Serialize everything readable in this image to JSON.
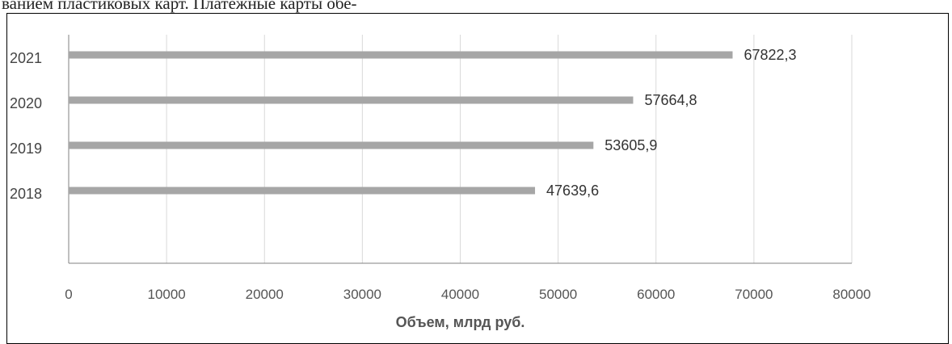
{
  "page": {
    "top_text": "ванием пластиковых карт. Платежные карты обе-"
  },
  "chart_data": {
    "type": "bar",
    "orientation": "horizontal",
    "categories": [
      "2021",
      "2020",
      "2019",
      "2018"
    ],
    "values": [
      67822.3,
      57664.8,
      53605.9,
      47639.6
    ],
    "data_labels": [
      "67822,3",
      "57664,8",
      "53605,9",
      "47639,6"
    ],
    "xlim": [
      0,
      80000
    ],
    "x_ticks": [
      0,
      10000,
      20000,
      30000,
      40000,
      50000,
      60000,
      70000,
      80000
    ],
    "xlabel": "Объем, млрд руб.",
    "ylabel": "",
    "title": "",
    "grid": "vertical",
    "legend": "none",
    "colors": {
      "bar": "#a6a6a6",
      "grid": "#d9d9d9",
      "axis": "#808080"
    }
  }
}
